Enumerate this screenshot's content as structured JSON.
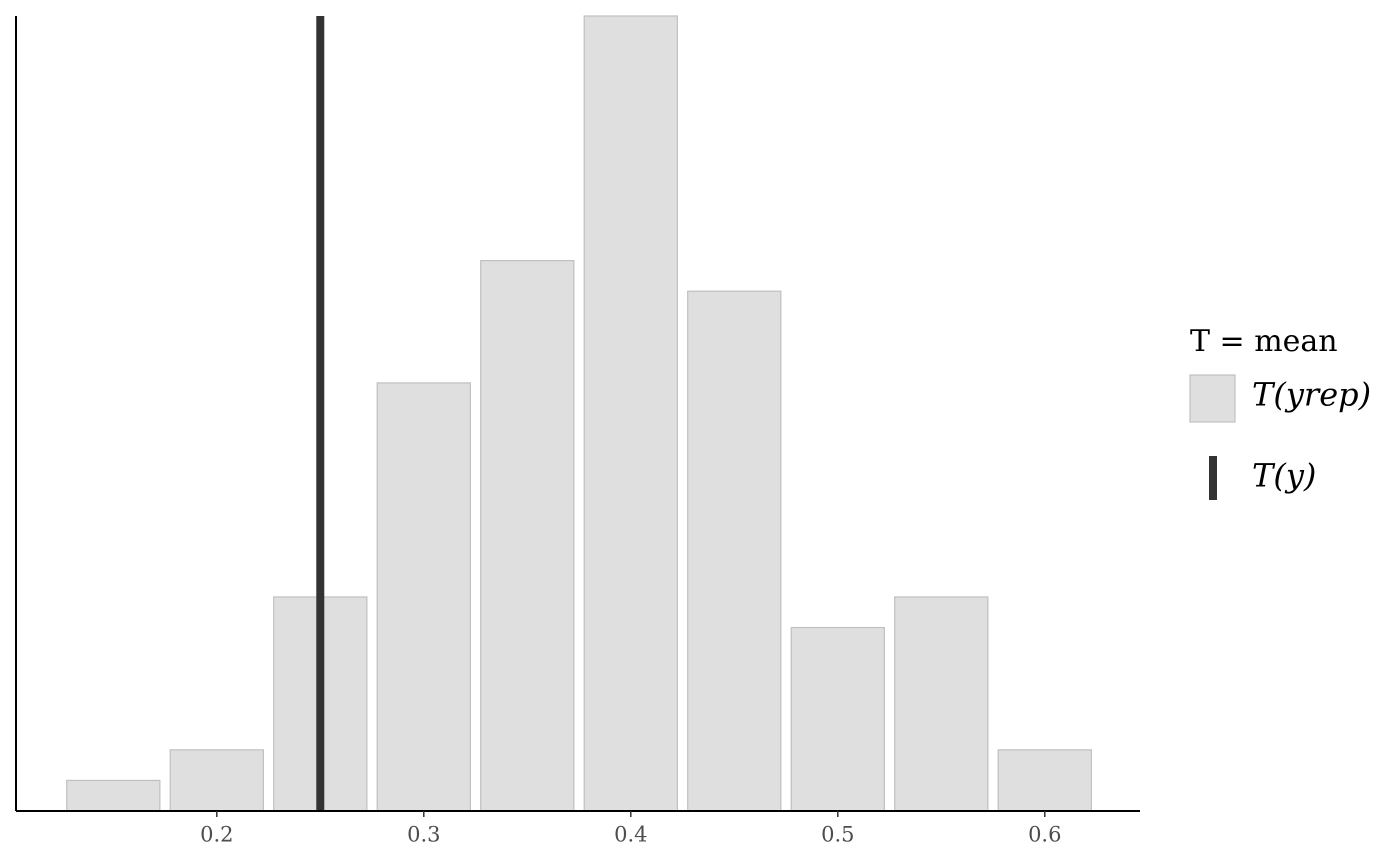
{
  "chart_data": {
    "type": "histogram",
    "legend_title": "T = mean",
    "series": [
      {
        "name": "T(yrep)",
        "color": "#dfdfdf",
        "bins": [
          0.125,
          0.175,
          0.225,
          0.275,
          0.325,
          0.375,
          0.425,
          0.475,
          0.525,
          0.575,
          0.625
        ],
        "counts": [
          1,
          2,
          7,
          14,
          18,
          26,
          17,
          6,
          7,
          2
        ]
      }
    ],
    "observed": {
      "name": "T(y)",
      "value": 0.25,
      "color": "#333333"
    },
    "xlim": [
      0.103,
      0.646
    ],
    "ylim": [
      0,
      26
    ],
    "xticks": [
      0.2,
      0.3,
      0.4,
      0.5,
      0.6
    ]
  }
}
